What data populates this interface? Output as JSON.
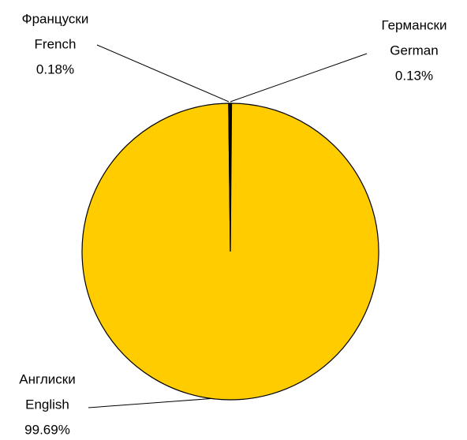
{
  "chart_data": {
    "type": "pie",
    "categories": [
      "German",
      "English",
      "French"
    ],
    "categories_local": [
      "Германски",
      "Англиски",
      "Француски"
    ],
    "values": [
      0.13,
      99.69,
      0.18
    ],
    "value_labels": [
      "0.13%",
      "99.69%",
      "0.18%"
    ],
    "colors": [
      "#1a1a1a",
      "#ffcc00",
      "#1a1a1a"
    ]
  }
}
